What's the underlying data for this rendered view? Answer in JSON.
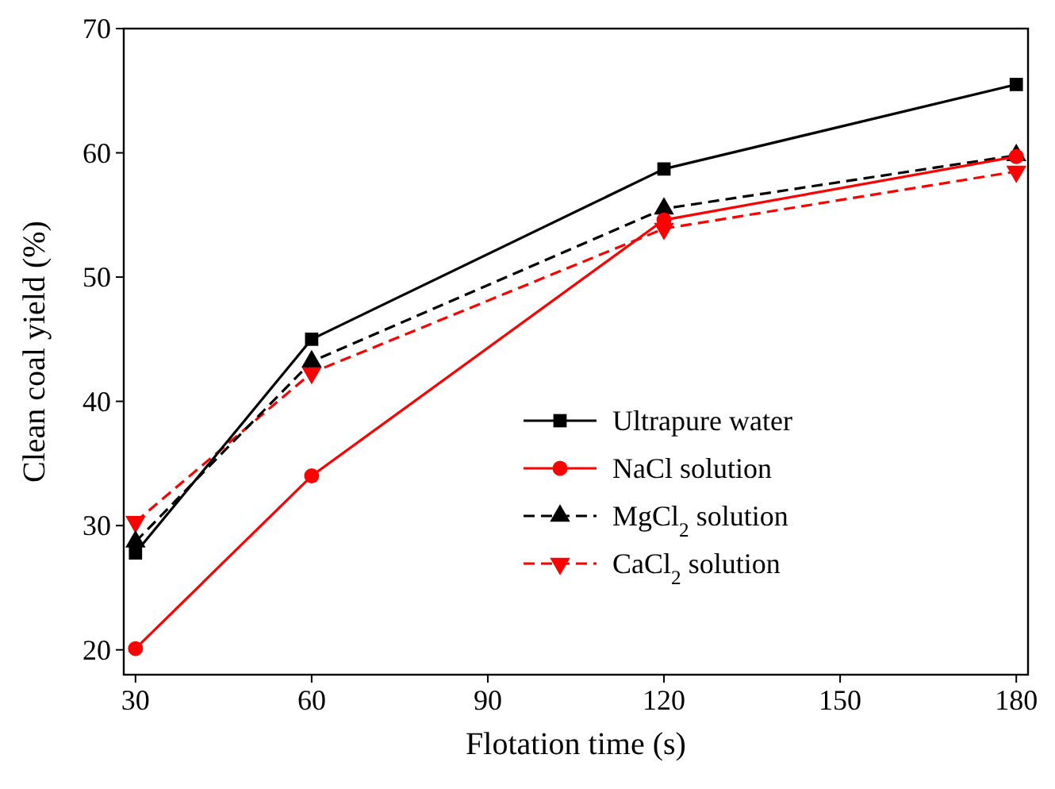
{
  "chart_data": {
    "type": "line",
    "xlabel": "Flotation time (s)",
    "ylabel": "Clean coal yield (%)",
    "x": [
      30,
      60,
      120,
      180
    ],
    "xlim": [
      28,
      182
    ],
    "xticks": [
      30,
      60,
      90,
      120,
      150,
      180
    ],
    "ylim": [
      18,
      70
    ],
    "yticks": [
      20,
      30,
      40,
      50,
      60,
      70
    ],
    "legend": "right",
    "grid": false,
    "series": [
      {
        "name": "Ultrapure water",
        "color": "#000000",
        "values": [
          27.8,
          45.0,
          58.7,
          65.5
        ],
        "marker": "square",
        "line_style": "solid"
      },
      {
        "name": "NaCl solution",
        "color": "#ff0000",
        "values": [
          20.1,
          34.0,
          54.6,
          59.7
        ],
        "marker": "circle",
        "line_style": "solid"
      },
      {
        "name": "MgCl$_{2}$ solution",
        "color": "#000000",
        "values": [
          28.7,
          43.2,
          55.5,
          59.8
        ],
        "marker": "triangle",
        "line_style": "dashed"
      },
      {
        "name": "CaCl$_{2}$ solution",
        "color": "#ff0000",
        "values": [
          30.3,
          42.3,
          53.9,
          58.5
        ],
        "marker": "triangle-down",
        "line_style": "dashed"
      }
    ]
  }
}
